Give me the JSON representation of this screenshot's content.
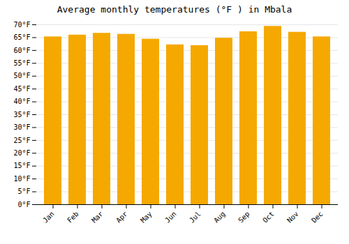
{
  "chart_data": {
    "type": "bar",
    "title": "Average monthly temperatures (°F ) in Mbala",
    "categories": [
      "Jan",
      "Feb",
      "Mar",
      "Apr",
      "May",
      "Jun",
      "Jul",
      "Aug",
      "Sep",
      "Oct",
      "Nov",
      "Dec"
    ],
    "values": [
      65.3,
      66.0,
      66.7,
      66.3,
      64.4,
      62.2,
      61.9,
      64.8,
      67.3,
      69.4,
      67.1,
      65.3
    ],
    "color": "#F5A800",
    "ylim": [
      0,
      70
    ],
    "yticks": [
      {
        "value": 0,
        "label": "0°F"
      },
      {
        "value": 5,
        "label": "5°F"
      },
      {
        "value": 10,
        "label": "10°F"
      },
      {
        "value": 15,
        "label": "15°F"
      },
      {
        "value": 20,
        "label": "20°F"
      },
      {
        "value": 25,
        "label": "25°F"
      },
      {
        "value": 30,
        "label": "30°F"
      },
      {
        "value": 35,
        "label": "35°F"
      },
      {
        "value": 40,
        "label": "40°F"
      },
      {
        "value": 45,
        "label": "45°F"
      },
      {
        "value": 50,
        "label": "50°F"
      },
      {
        "value": 55,
        "label": "55°F"
      },
      {
        "value": 60,
        "label": "60°F"
      },
      {
        "value": 65,
        "label": "65°F"
      },
      {
        "value": 70,
        "label": "70°F"
      }
    ],
    "grid": true
  }
}
